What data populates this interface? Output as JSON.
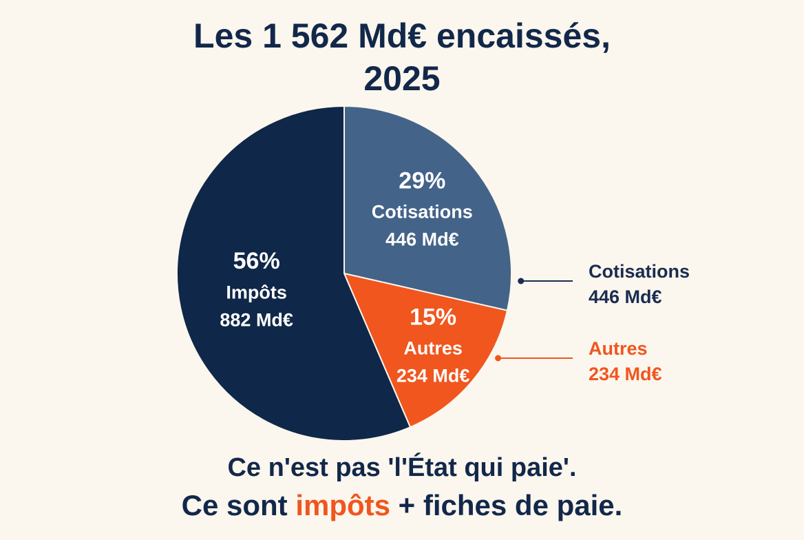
{
  "chart_data": {
    "type": "pie",
    "title": [
      "Les 1 562 Md€ encaissés,",
      "2025"
    ],
    "categories": [
      "Cotisations",
      "Autres",
      "Impôts"
    ],
    "values": [
      446,
      234,
      882
    ],
    "value_labels": [
      "446 Md€",
      "234 Md€",
      "882 Md€"
    ],
    "percent_values": [
      29,
      15,
      56
    ],
    "percent_labels": [
      "29%",
      "15%",
      "56%"
    ],
    "colors": [
      "#436389",
      "#f0561e",
      "#0f2748"
    ]
  },
  "footer": {
    "line1": "Ce n'est pas 'l'État qui paie'.",
    "line2": [
      "Ce sont ",
      "impôts",
      " + fiches de paie."
    ]
  }
}
